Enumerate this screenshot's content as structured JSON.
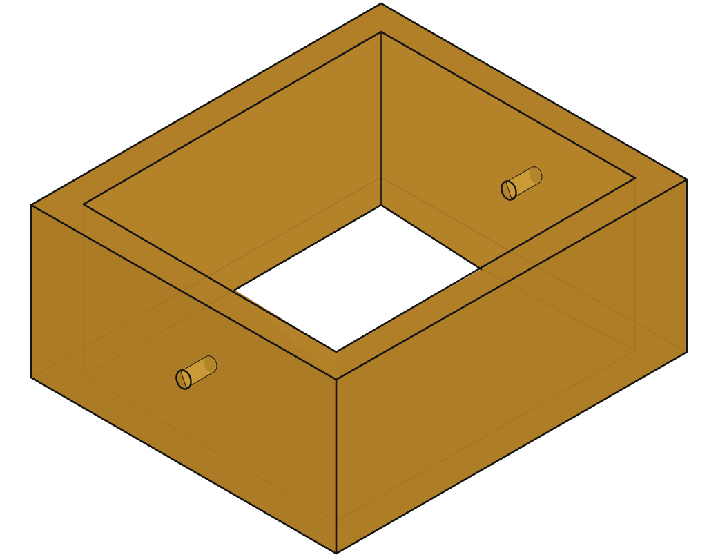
{
  "colors": {
    "background": "#ffffff",
    "material": "#b07f28",
    "material_side": "#ab7b26",
    "material_inner": "#b38229",
    "material_front": "#ae7e27",
    "hidden_edge": "#a37424",
    "edge": "#141414",
    "pin": "#c99a36",
    "pin_end": "#b3852a"
  },
  "parts": {
    "body": "box-frame",
    "opening": "square-through-opening",
    "pins": [
      "left-face-pin",
      "back-right-pin"
    ]
  }
}
